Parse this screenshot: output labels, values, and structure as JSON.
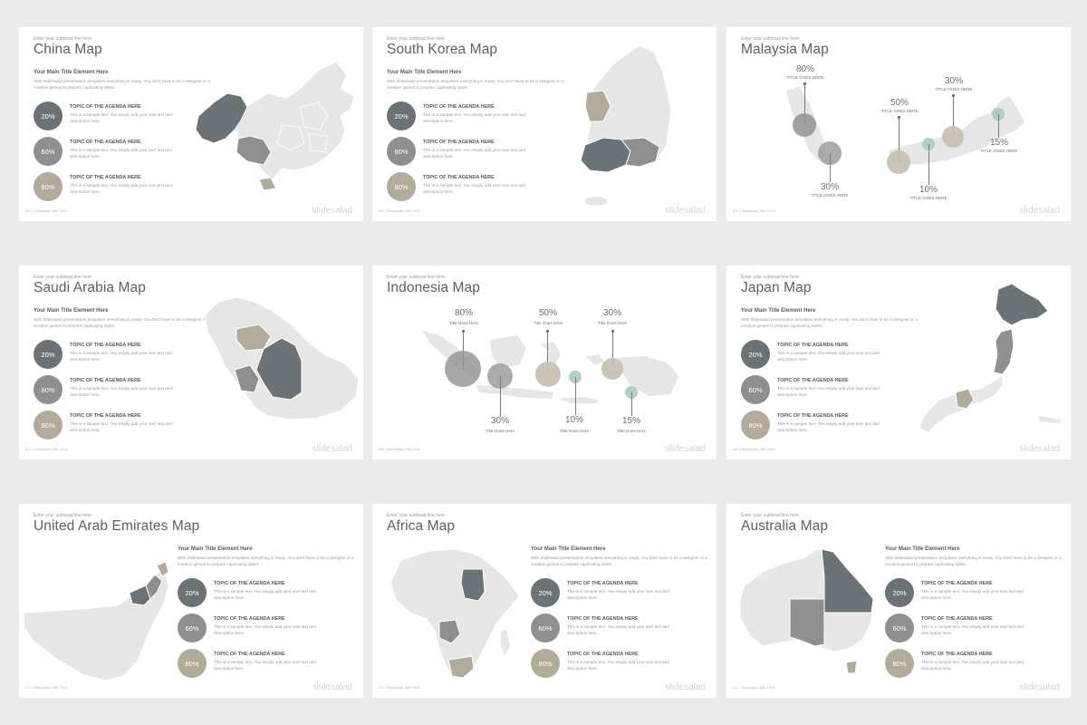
{
  "colors": {
    "background": "#ebebeb",
    "slide": "#ffffff",
    "dark_gray": "#6b7376",
    "mid_gray": "#8f8f8f",
    "beige": "#b3ab99",
    "teal_light": "#a9cbc1",
    "map_base": "#e6e6e6"
  },
  "common": {
    "subhead": "Enter your subhead line here",
    "main_title": "Your Main Title Element Here",
    "main_desc": "With Slidesalad presentation templates everything is ready. You don't have to be a designer or a creative genius to prepare captivating slides",
    "agenda_title": "TOPIC OF THE AGENDA HERE",
    "agenda_desc": "This is a sample text. You simply add your own text and description here.",
    "brand": "slidesalad"
  },
  "slides": {
    "china": {
      "title": "China Map",
      "footer": "166 | Slidesalad 26th 2019",
      "agenda": [
        {
          "value": "20%"
        },
        {
          "value": "60%"
        },
        {
          "value": "80%"
        }
      ],
      "icon": "china-map-graphic"
    },
    "korea": {
      "title": "South Korea Map",
      "footer": "166 | Slidesalad 26th 2019",
      "agenda": [
        {
          "value": "20%"
        },
        {
          "value": "60%"
        },
        {
          "value": "80%"
        }
      ],
      "icon": "south-korea-map-graphic"
    },
    "malaysia": {
      "title": "Malaysia Map",
      "footer": "166 | Slidesalad 26th 2019",
      "bubbles": [
        {
          "pct": "80%",
          "label": "TITLE GOES HERE"
        },
        {
          "pct": "30%",
          "label": "TITLE GOES HERE"
        },
        {
          "pct": "50%",
          "label": "TITLE GOES HERE"
        },
        {
          "pct": "10%",
          "label": "TITLE GOES HERE"
        },
        {
          "pct": "30%",
          "label": "TITLE GOES HERE"
        },
        {
          "pct": "15%",
          "label": "TITLE GOES HERE"
        }
      ],
      "icon": "malaysia-map-graphic"
    },
    "saudi": {
      "title": "Saudi Arabia Map",
      "footer": "167 | Slidesalad 26th 2019",
      "agenda": [
        {
          "value": "20%"
        },
        {
          "value": "60%"
        },
        {
          "value": "80%"
        }
      ],
      "icon": "saudi-arabia-map-graphic"
    },
    "indonesia": {
      "title": "Indonesia Map",
      "footer": "168 | Slidesalad 26th 2019",
      "bubbles": [
        {
          "pct": "80%",
          "label": "Title Goes Here"
        },
        {
          "pct": "30%",
          "label": "Title Goes Here"
        },
        {
          "pct": "50%",
          "label": "Title Goes Here"
        },
        {
          "pct": "10%",
          "label": "Title Goes Here"
        },
        {
          "pct": "30%",
          "label": "Title Goes Here"
        },
        {
          "pct": "15%",
          "label": "Title Goes Here"
        }
      ],
      "icon": "indonesia-map-graphic"
    },
    "japan": {
      "title": "Japan Map",
      "footer": "169 | Slidesalad 26th 2019",
      "agenda": [
        {
          "value": "20%"
        },
        {
          "value": "60%"
        },
        {
          "value": "80%"
        }
      ],
      "icon": "japan-map-graphic"
    },
    "uae": {
      "title": "United Arab Emirates Map",
      "footer": "170 | Slidesalad 26th 2019",
      "agenda": [
        {
          "value": "20%"
        },
        {
          "value": "60%"
        },
        {
          "value": "80%"
        }
      ],
      "icon": "uae-map-graphic"
    },
    "africa": {
      "title": "Africa Map",
      "footer": "171 | Slidesalad 26th 2019",
      "agenda": [
        {
          "value": "20%"
        },
        {
          "value": "60%"
        },
        {
          "value": "80%"
        }
      ],
      "icon": "africa-map-graphic"
    },
    "australia": {
      "title": "Australia Map",
      "footer": "172 | Slidesalad 26th 2019",
      "agenda": [
        {
          "value": "20%"
        },
        {
          "value": "60%"
        },
        {
          "value": "80%"
        }
      ],
      "icon": "australia-map-graphic"
    }
  }
}
